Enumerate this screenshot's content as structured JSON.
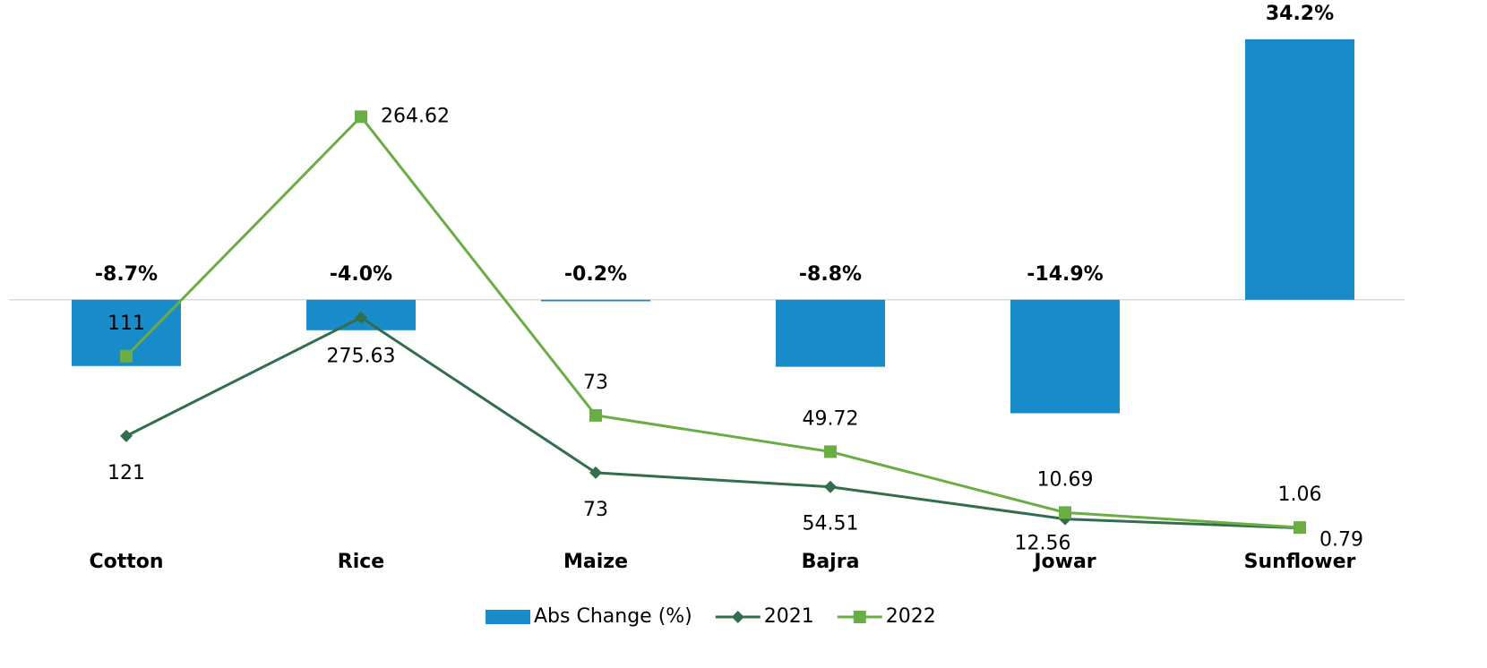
{
  "chart_data": {
    "type": "bar-line",
    "categories": [
      "Cotton",
      "Rice",
      "Maize",
      "Bajra",
      "Jowar",
      "Sunflower"
    ],
    "ylim": [
      -32,
      37
    ],
    "y2lim": [
      -9.2,
      328
    ],
    "y3lim": [
      -19.5,
      667
    ],
    "series": [
      {
        "name": "Abs Change (%)",
        "type": "bar",
        "color": "#1a8bc9",
        "values": [
          -8.7,
          -4.0,
          -0.2,
          -8.8,
          -14.9,
          34.2
        ],
        "value_labels": [
          "-8.7%",
          "-4.0%",
          "-0.2%",
          "-8.8%",
          "-14.9%",
          "34.2%"
        ]
      },
      {
        "name": "2021",
        "type": "line",
        "axis": "y3",
        "marker": "diamond",
        "color": "#336e4c",
        "values": [
          121,
          275.63,
          73,
          54.51,
          12.56,
          0.79
        ]
      },
      {
        "name": "2022",
        "type": "line",
        "axis": "y2",
        "marker": "square",
        "color": "#6aad45",
        "values": [
          111,
          264.62,
          73,
          49.72,
          10.69,
          1.06
        ]
      }
    ]
  }
}
